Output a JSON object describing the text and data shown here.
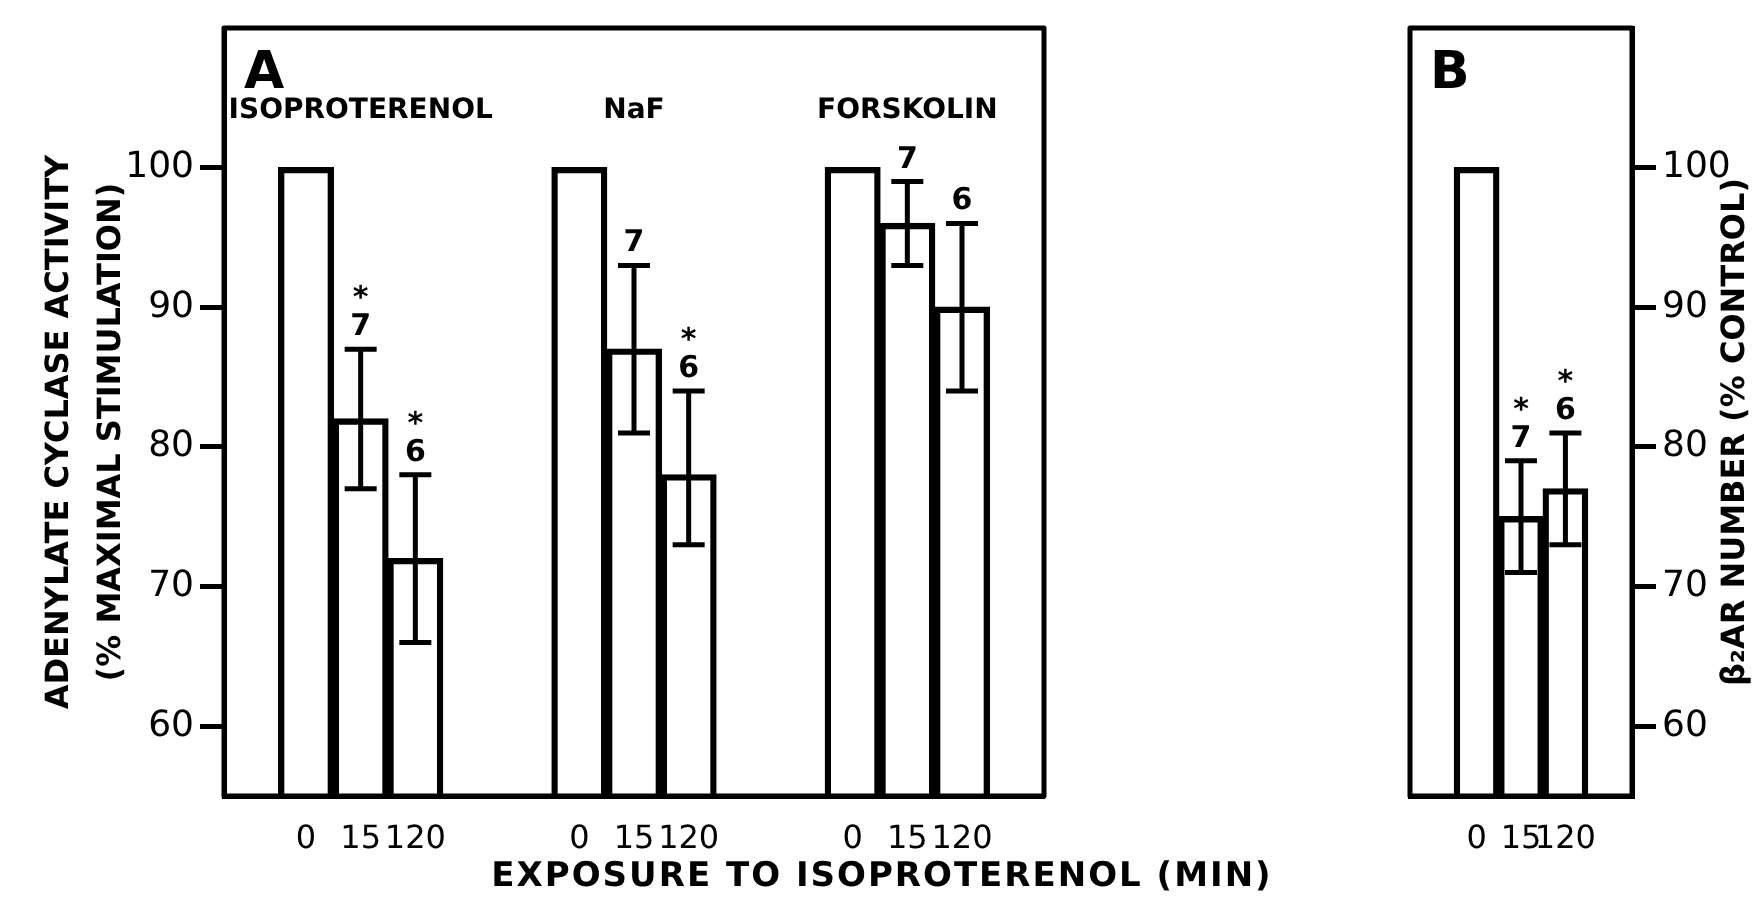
{
  "chart_data": [
    {
      "type": "bar",
      "title": "A",
      "ylabel": "ADENYLATE CYCLASE ACTIVITY\n(% MAXIMAL STIMULATION)",
      "xlabel": "EXPOSURE TO ISOPROTERENOL (MIN)",
      "categories": [
        null,
        "0",
        "15",
        "120",
        null,
        null,
        "0",
        "15",
        "120",
        null,
        null,
        "0",
        "15",
        "120",
        null
      ],
      "values": [
        null,
        100,
        82,
        72,
        null,
        null,
        100,
        87,
        78,
        null,
        null,
        100,
        96,
        90,
        null
      ],
      "errors": [
        null,
        null,
        [
          77,
          87
        ],
        [
          66,
          78
        ],
        null,
        null,
        null,
        [
          81,
          93
        ],
        [
          73,
          84
        ],
        null,
        null,
        null,
        [
          93,
          99
        ],
        [
          84,
          96
        ],
        null
      ],
      "color": "#000000",
      "ylim": [
        55,
        110
      ],
      "yticks": [
        60,
        70,
        80,
        90,
        100
      ],
      "annotations": [
        "ISOPROTERENOL",
        "NaF",
        "FORSKOLIN",
        {
          "text": "*\n7",
          "y": 87
        },
        {
          "text": "*\n6",
          "y": 78
        },
        {
          "text": "7",
          "y": 93
        },
        {
          "text": "*\n6",
          "y": 84
        },
        {
          "text": "7",
          "y": 99
        },
        {
          "text": "6",
          "y": 96
        }
      ]
    },
    {
      "type": "bar",
      "title": "B",
      "y2label": "β₂AR NUMBER (% CONTROL)",
      "categories": [
        null,
        "0",
        "15",
        "120",
        null
      ],
      "series": [
        {
          "color": "#000000",
          "axis": "y2",
          "values": [
            null,
            100,
            75,
            77,
            null
          ],
          "errors": [
            null,
            null,
            [
              71,
              79
            ],
            [
              73,
              81
            ],
            null
          ]
        }
      ],
      "y2lim": [
        55,
        110
      ],
      "y2ticks": [
        60,
        70,
        80,
        90,
        100
      ],
      "annotations": [
        "*\n7",
        "*\n6"
      ]
    }
  ]
}
